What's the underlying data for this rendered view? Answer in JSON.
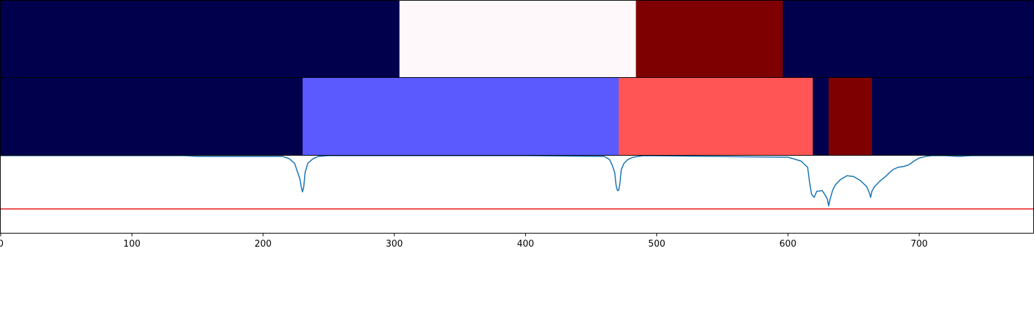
{
  "chart_data": {
    "type": "heatmap",
    "xlim": [
      0,
      787
    ],
    "x_ticks": [
      "0",
      "100",
      "200",
      "300",
      "400",
      "500",
      "600",
      "700"
    ],
    "x_tick_values": [
      0,
      100,
      200,
      300,
      400,
      500,
      600,
      700
    ],
    "colormap": "seismic",
    "colors": {
      "dark_blue": "#00004c",
      "blue": "#5a5aff",
      "white": "#fff8fa",
      "red": "#ff5555",
      "dark_red": "#7f0000",
      "line": "#1f77b4",
      "threshold": "#e41a1c"
    },
    "rows": [
      {
        "segments": [
          {
            "start": 0,
            "end": 304,
            "color": "dark_blue"
          },
          {
            "start": 304,
            "end": 484,
            "color": "white"
          },
          {
            "start": 484,
            "end": 596,
            "color": "dark_red"
          },
          {
            "start": 596,
            "end": 787,
            "color": "dark_blue"
          }
        ]
      },
      {
        "segments": [
          {
            "start": 0,
            "end": 230,
            "color": "dark_blue"
          },
          {
            "start": 230,
            "end": 471,
            "color": "blue"
          },
          {
            "start": 471,
            "end": 619,
            "color": "red"
          },
          {
            "start": 619,
            "end": 631,
            "color": "dark_blue"
          },
          {
            "start": 631,
            "end": 664,
            "color": "dark_red"
          },
          {
            "start": 664,
            "end": 787,
            "color": "dark_blue"
          }
        ]
      }
    ],
    "line_panel": {
      "ylim": [
        0,
        1
      ],
      "threshold": 0.31,
      "series": {
        "x": [
          0,
          140,
          150,
          215,
          220,
          224,
          226,
          228,
          229,
          230,
          231,
          232,
          234,
          238,
          242,
          250,
          400,
          460,
          464,
          466,
          468,
          469,
          470,
          471,
          472,
          473,
          475,
          478,
          482,
          490,
          600,
          610,
          615,
          616,
          617,
          618,
          620,
          622,
          624,
          626,
          628,
          630,
          631,
          632,
          634,
          636,
          640,
          645,
          650,
          655,
          660,
          662,
          663,
          664,
          666,
          670,
          675,
          680,
          684,
          688,
          692,
          696,
          700,
          705,
          710,
          720,
          730,
          740,
          787
        ],
        "y": [
          1.0,
          1.0,
          0.99,
          0.99,
          0.96,
          0.9,
          0.8,
          0.7,
          0.6,
          0.53,
          0.6,
          0.78,
          0.9,
          0.96,
          0.99,
          1.0,
          1.0,
          0.99,
          0.95,
          0.88,
          0.78,
          0.62,
          0.55,
          0.55,
          0.65,
          0.82,
          0.9,
          0.95,
          0.98,
          1.0,
          0.98,
          0.93,
          0.85,
          0.72,
          0.6,
          0.5,
          0.46,
          0.54,
          0.54,
          0.55,
          0.5,
          0.44,
          0.35,
          0.43,
          0.55,
          0.62,
          0.69,
          0.74,
          0.73,
          0.68,
          0.6,
          0.52,
          0.46,
          0.54,
          0.6,
          0.67,
          0.74,
          0.82,
          0.85,
          0.86,
          0.88,
          0.93,
          0.97,
          0.99,
          1.0,
          1.0,
          0.99,
          1.0,
          1.0
        ]
      }
    }
  }
}
